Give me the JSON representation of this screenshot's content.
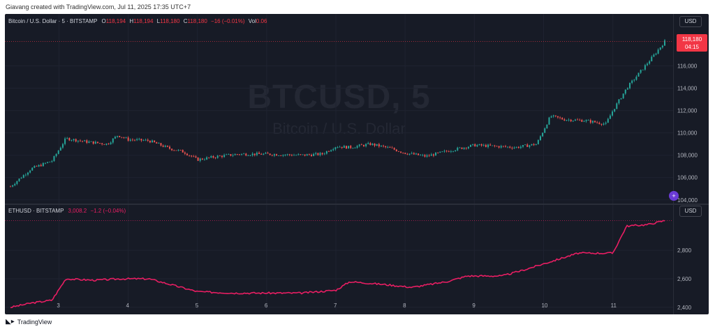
{
  "header": {
    "credit": "Giavang created with TradingView.com, Jul 11, 2025 17:35 UTC+7"
  },
  "footer": {
    "logo_text": "TradingView"
  },
  "btc_legend": {
    "symbol": "Bitcoin / U.S. Dollar · 5 · BITSTAMP",
    "o_label": "O",
    "o": "118,194",
    "h_label": "H",
    "h": "118,194",
    "l_label": "L",
    "l": "118,180",
    "c_label": "C",
    "c": "118,180",
    "change": "−16 (−0.01%)",
    "vol_label": "Vol",
    "vol": "0.06"
  },
  "eth_legend": {
    "symbol": "ETHUSD · BITSTAMP",
    "price": "3,008.2",
    "change": "−1.2 (−0.04%)"
  },
  "currency": "USD",
  "watermark": {
    "ticker": "BTCUSD, 5",
    "name": "Bitcoin / U.S. Dollar"
  },
  "last_price": {
    "price": "118,180",
    "countdown": "04:15"
  },
  "colors": {
    "background": "#171b26",
    "up": "#26a69a",
    "down": "#ef5350",
    "eth_line": "#e91e63",
    "last_price": "#f23645"
  },
  "chart_data": [
    {
      "type": "line",
      "title": "Bitcoin / U.S. Dollar · 5 · BITSTAMP",
      "style": "candlestick",
      "x_ticks": [
        "3",
        "4",
        "5",
        "6",
        "7",
        "8",
        "9",
        "10",
        "11"
      ],
      "ytick_labels": [
        "104,000",
        "106,000",
        "108,000",
        "110,000",
        "112,000",
        "114,000",
        "116,000"
      ],
      "ylim": [
        103800,
        118900
      ],
      "x": [
        2.3,
        2.6,
        2.9,
        3.1,
        3.4,
        3.7,
        3.85,
        4.0,
        4.3,
        4.6,
        4.8,
        5.0,
        5.3,
        5.6,
        6.0,
        6.5,
        6.8,
        7.0,
        7.2,
        7.5,
        7.8,
        8.0,
        8.3,
        8.7,
        9.0,
        9.3,
        9.6,
        9.9,
        10.1,
        10.3,
        10.6,
        10.9,
        11.0,
        11.2,
        11.4,
        11.6,
        11.75
      ],
      "values": [
        105200,
        106800,
        107500,
        109500,
        109200,
        109000,
        109800,
        109400,
        109300,
        108600,
        108300,
        107600,
        107900,
        108100,
        108100,
        108000,
        108100,
        108800,
        108700,
        109000,
        108600,
        108200,
        107900,
        108500,
        108900,
        108800,
        108700,
        109000,
        111500,
        111200,
        111100,
        110800,
        112000,
        114000,
        115500,
        117000,
        118180
      ],
      "last": 118180
    },
    {
      "type": "line",
      "title": "ETHUSD · BITSTAMP",
      "series": [
        {
          "name": "ETHUSD",
          "values": [
            2400,
            2430,
            2450,
            2600,
            2590,
            2600,
            2600,
            2510,
            2500,
            2500,
            2500,
            2520,
            2580,
            2560,
            2540,
            2580,
            2620,
            2620,
            2660,
            2720,
            2780,
            2780,
            2970,
            2980,
            3008
          ]
        }
      ],
      "x": [
        2.3,
        2.6,
        2.9,
        3.1,
        3.5,
        3.9,
        4.3,
        5.0,
        5.5,
        6.0,
        6.5,
        7.0,
        7.2,
        7.7,
        8.1,
        8.6,
        8.9,
        9.4,
        9.7,
        10.1,
        10.5,
        11.0,
        11.2,
        11.5,
        11.75
      ],
      "ytick_labels": [
        "2,400",
        "2,600",
        "2,800"
      ],
      "ylim": [
        2380,
        3040
      ]
    }
  ]
}
